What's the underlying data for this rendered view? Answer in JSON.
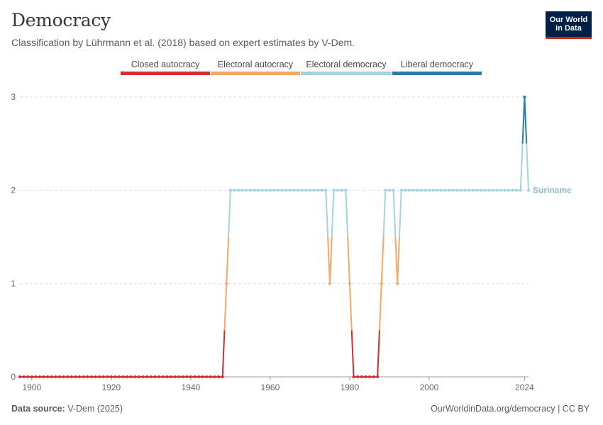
{
  "header": {
    "title": "Democracy",
    "subtitle": "Classification by Lührmann et al. (2018) based on expert estimates by V-Dem.",
    "logo_line1": "Our World",
    "logo_line2": "in Data"
  },
  "legend": [
    {
      "label": "Closed autocracy",
      "color": "#d12e2e"
    },
    {
      "label": "Electoral autocracy",
      "color": "#f4a960"
    },
    {
      "label": "Electoral democracy",
      "color": "#a3d3de"
    },
    {
      "label": "Liberal democracy",
      "color": "#2b78ab"
    }
  ],
  "footer": {
    "source_label": "Data source:",
    "source_value": "V-Dem (2025)",
    "right": "OurWorldinData.org/democracy | CC BY"
  },
  "chart_data": {
    "type": "line",
    "title": "Democracy",
    "subtitle": "Classification by Lührmann et al. (2018) based on expert estimates by V-Dem.",
    "xlabel": "",
    "ylabel": "",
    "xlim": [
      1897,
      2025
    ],
    "ylim": [
      0,
      3
    ],
    "x_ticks": [
      1900,
      1920,
      1940,
      1960,
      1980,
      2000,
      2024
    ],
    "y_ticks": [
      0,
      1,
      2,
      3
    ],
    "grid": "horizontal dashed",
    "legend_position": "top",
    "series": [
      {
        "name": "Suriname",
        "label_color": "#8fb8c9",
        "x": [
          1897,
          1898,
          1899,
          1900,
          1901,
          1902,
          1903,
          1904,
          1905,
          1906,
          1907,
          1908,
          1909,
          1910,
          1911,
          1912,
          1913,
          1914,
          1915,
          1916,
          1917,
          1918,
          1919,
          1920,
          1921,
          1922,
          1923,
          1924,
          1925,
          1926,
          1927,
          1928,
          1929,
          1930,
          1931,
          1932,
          1933,
          1934,
          1935,
          1936,
          1937,
          1938,
          1939,
          1940,
          1941,
          1942,
          1943,
          1944,
          1945,
          1946,
          1947,
          1948,
          1949,
          1950,
          1951,
          1952,
          1953,
          1954,
          1955,
          1956,
          1957,
          1958,
          1959,
          1960,
          1961,
          1962,
          1963,
          1964,
          1965,
          1966,
          1967,
          1968,
          1969,
          1970,
          1971,
          1972,
          1973,
          1974,
          1975,
          1976,
          1977,
          1978,
          1979,
          1980,
          1981,
          1982,
          1983,
          1984,
          1985,
          1986,
          1987,
          1988,
          1989,
          1990,
          1991,
          1992,
          1993,
          1994,
          1995,
          1996,
          1997,
          1998,
          1999,
          2000,
          2001,
          2002,
          2003,
          2004,
          2005,
          2006,
          2007,
          2008,
          2009,
          2010,
          2011,
          2012,
          2013,
          2014,
          2015,
          2016,
          2017,
          2018,
          2019,
          2020,
          2021,
          2022,
          2023,
          2024,
          2025
        ],
        "values": [
          0,
          0,
          0,
          0,
          0,
          0,
          0,
          0,
          0,
          0,
          0,
          0,
          0,
          0,
          0,
          0,
          0,
          0,
          0,
          0,
          0,
          0,
          0,
          0,
          0,
          0,
          0,
          0,
          0,
          0,
          0,
          0,
          0,
          0,
          0,
          0,
          0,
          0,
          0,
          0,
          0,
          0,
          0,
          0,
          0,
          0,
          0,
          0,
          0,
          0,
          0,
          0,
          1,
          2,
          2,
          2,
          2,
          2,
          2,
          2,
          2,
          2,
          2,
          2,
          2,
          2,
          2,
          2,
          2,
          2,
          2,
          2,
          2,
          2,
          2,
          2,
          2,
          2,
          1,
          2,
          2,
          2,
          2,
          1,
          0,
          0,
          0,
          0,
          0,
          0,
          0,
          1,
          2,
          2,
          2,
          1,
          2,
          2,
          2,
          2,
          2,
          2,
          2,
          2,
          2,
          2,
          2,
          2,
          2,
          2,
          2,
          2,
          2,
          2,
          2,
          2,
          2,
          2,
          2,
          2,
          2,
          2,
          2,
          2,
          2,
          2,
          2,
          3,
          2
        ]
      }
    ]
  }
}
